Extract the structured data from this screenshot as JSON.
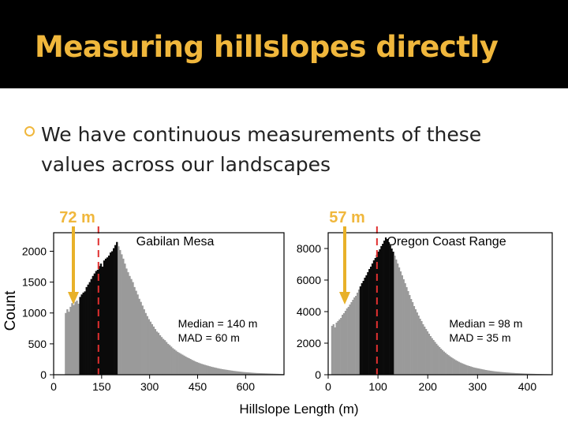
{
  "slide": {
    "title": "Measuring hillslopes directly",
    "bullet": "We have continuous measurements of these values across our landscapes"
  },
  "colors": {
    "title": "#f0b73c",
    "arrow": "#e8b129",
    "annotation": "#f0b73c",
    "median_line": "#e03030",
    "bars_gray": "#9a9a9a",
    "bars_dark": "#0a0a0a"
  },
  "chart_data": [
    {
      "type": "bar",
      "title": "Gabilan Mesa",
      "annotation": "72 m",
      "ylabel": "Count",
      "xlabel": "Hillslope Length (m)",
      "xlim": [
        0,
        720
      ],
      "ylim": [
        0,
        2300
      ],
      "xticks": [
        0,
        150,
        300,
        450,
        600
      ],
      "yticks": [
        0,
        500,
        1000,
        1500,
        2000
      ],
      "stats": [
        "Median = 140 m",
        "MAD = 60 m"
      ],
      "median": 140,
      "mad_range": [
        80,
        200
      ],
      "bin_width": 5,
      "grid": false,
      "values": [
        0,
        0,
        0,
        0,
        0,
        0,
        0,
        1000,
        1060,
        1020,
        1100,
        1160,
        1130,
        1180,
        1200,
        1150,
        1260,
        1300,
        1330,
        1350,
        1420,
        1460,
        1500,
        1550,
        1600,
        1640,
        1680,
        1700,
        1760,
        1800,
        1750,
        1850,
        1880,
        1900,
        1930,
        1980,
        2000,
        2050,
        2100,
        2150,
        2080,
        2020,
        1950,
        1880,
        1800,
        1720,
        1660,
        1600,
        1550,
        1500,
        1420,
        1360,
        1300,
        1230,
        1180,
        1120,
        1060,
        1000,
        950,
        900,
        860,
        820,
        780,
        740,
        700,
        680,
        640,
        610,
        580,
        560,
        530,
        500,
        480,
        455,
        430,
        410,
        390,
        370,
        355,
        340,
        325,
        310,
        295,
        280,
        268,
        255,
        240,
        228,
        215,
        205,
        195,
        185,
        176,
        168,
        160,
        152,
        145,
        138,
        130,
        124,
        118,
        112,
        106,
        100,
        95,
        90,
        86,
        82,
        78,
        74,
        70,
        66,
        62,
        59,
        56,
        53,
        50,
        47,
        44,
        42,
        40,
        38,
        36,
        34,
        32,
        30,
        28,
        27,
        26,
        25,
        24,
        23,
        22,
        21,
        20,
        19,
        18,
        17,
        16,
        15,
        14,
        13,
        12,
        11,
        10
      ]
    },
    {
      "type": "bar",
      "title": "Oregon Coast Range",
      "annotation": "57 m",
      "xlim": [
        0,
        450
      ],
      "ylim": [
        0,
        9000
      ],
      "xticks": [
        0,
        100,
        200,
        300,
        400
      ],
      "yticks": [
        0,
        2000,
        4000,
        6000,
        8000
      ],
      "stats": [
        "Median = 98 m",
        "MAD = 35 m"
      ],
      "median": 98,
      "mad_range": [
        63,
        133
      ],
      "bin_width": 3,
      "grid": false,
      "values": [
        0,
        0,
        3100,
        3200,
        3000,
        3300,
        3400,
        3500,
        3600,
        3800,
        3900,
        4050,
        4200,
        4300,
        4450,
        4600,
        4750,
        4900,
        5000,
        5200,
        5400,
        5600,
        5800,
        5950,
        6150,
        6300,
        6500,
        6700,
        6850,
        7050,
        7250,
        7400,
        7600,
        7800,
        7950,
        8150,
        8300,
        8500,
        8700,
        8600,
        8400,
        8200,
        8000,
        7800,
        7550,
        7300,
        7050,
        6800,
        6550,
        6300,
        6050,
        5800,
        5550,
        5300,
        5050,
        4800,
        4600,
        4350,
        4150,
        3950,
        3750,
        3550,
        3400,
        3200,
        3050,
        2900,
        2750,
        2600,
        2450,
        2320,
        2200,
        2080,
        1960,
        1850,
        1750,
        1650,
        1560,
        1470,
        1390,
        1310,
        1240,
        1170,
        1100,
        1040,
        980,
        920,
        870,
        820,
        770,
        730,
        690,
        650,
        610,
        580,
        550,
        520,
        490,
        460,
        440,
        420,
        400,
        380,
        360,
        340,
        320,
        300,
        285,
        270,
        255,
        240,
        228,
        215,
        205,
        195,
        185,
        175,
        166,
        158,
        150,
        143,
        136,
        129,
        122,
        116,
        110,
        104,
        99,
        94,
        89,
        85,
        81,
        77,
        73,
        69,
        66,
        63,
        60,
        57,
        54,
        51,
        48,
        46,
        44,
        42,
        40,
        38,
        36,
        34,
        32,
        30
      ]
    }
  ]
}
